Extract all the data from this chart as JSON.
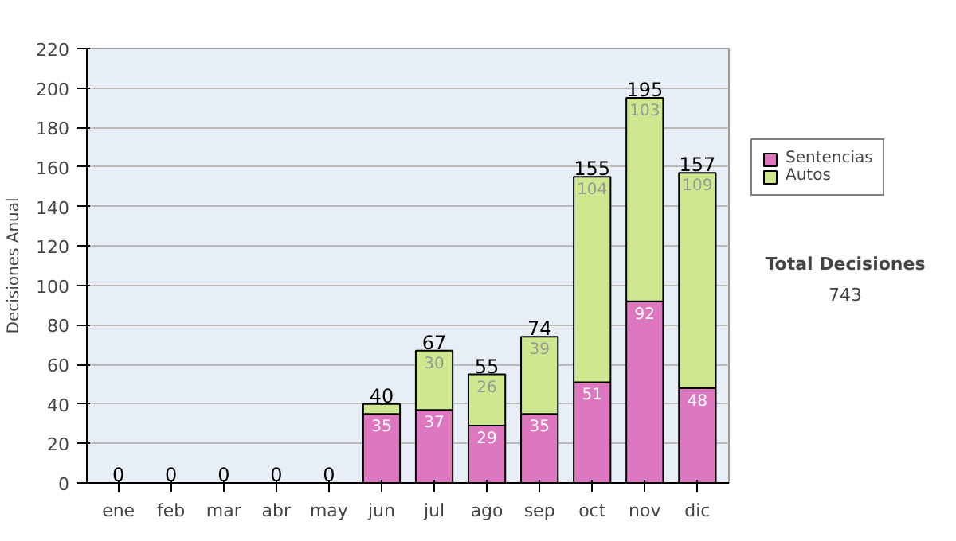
{
  "chart_data": {
    "type": "bar",
    "stacked": true,
    "ylabel": "Decisiones Anual",
    "categories": [
      "ene",
      "feb",
      "mar",
      "abr",
      "may",
      "jun",
      "jul",
      "ago",
      "sep",
      "oct",
      "nov",
      "dic"
    ],
    "series": [
      {
        "name": "Sentencias",
        "color": "#dd77c0",
        "values": [
          0,
          0,
          0,
          0,
          0,
          35,
          37,
          29,
          35,
          51,
          92,
          48
        ],
        "value_labels": [
          null,
          null,
          null,
          null,
          null,
          "35",
          "37",
          "29",
          "35",
          "51",
          "92",
          "48"
        ]
      },
      {
        "name": "Autos",
        "color": "#cfe88f",
        "values": [
          0,
          0,
          0,
          0,
          0,
          5,
          30,
          26,
          39,
          104,
          103,
          109
        ],
        "value_labels": [
          null,
          null,
          null,
          null,
          null,
          null,
          "30",
          "26",
          "39",
          "104",
          "103",
          "109"
        ]
      }
    ],
    "totals": [
      "0",
      "0",
      "0",
      "0",
      "0",
      "40",
      "67",
      "55",
      "74",
      "155",
      "195",
      "157"
    ],
    "ylim": [
      0,
      220
    ],
    "yticks": [
      0,
      20,
      40,
      60,
      80,
      100,
      120,
      140,
      160,
      180,
      200,
      220
    ],
    "grid": "y",
    "legend": "right",
    "annotations": [
      "Total Decisiones",
      "743"
    ]
  }
}
